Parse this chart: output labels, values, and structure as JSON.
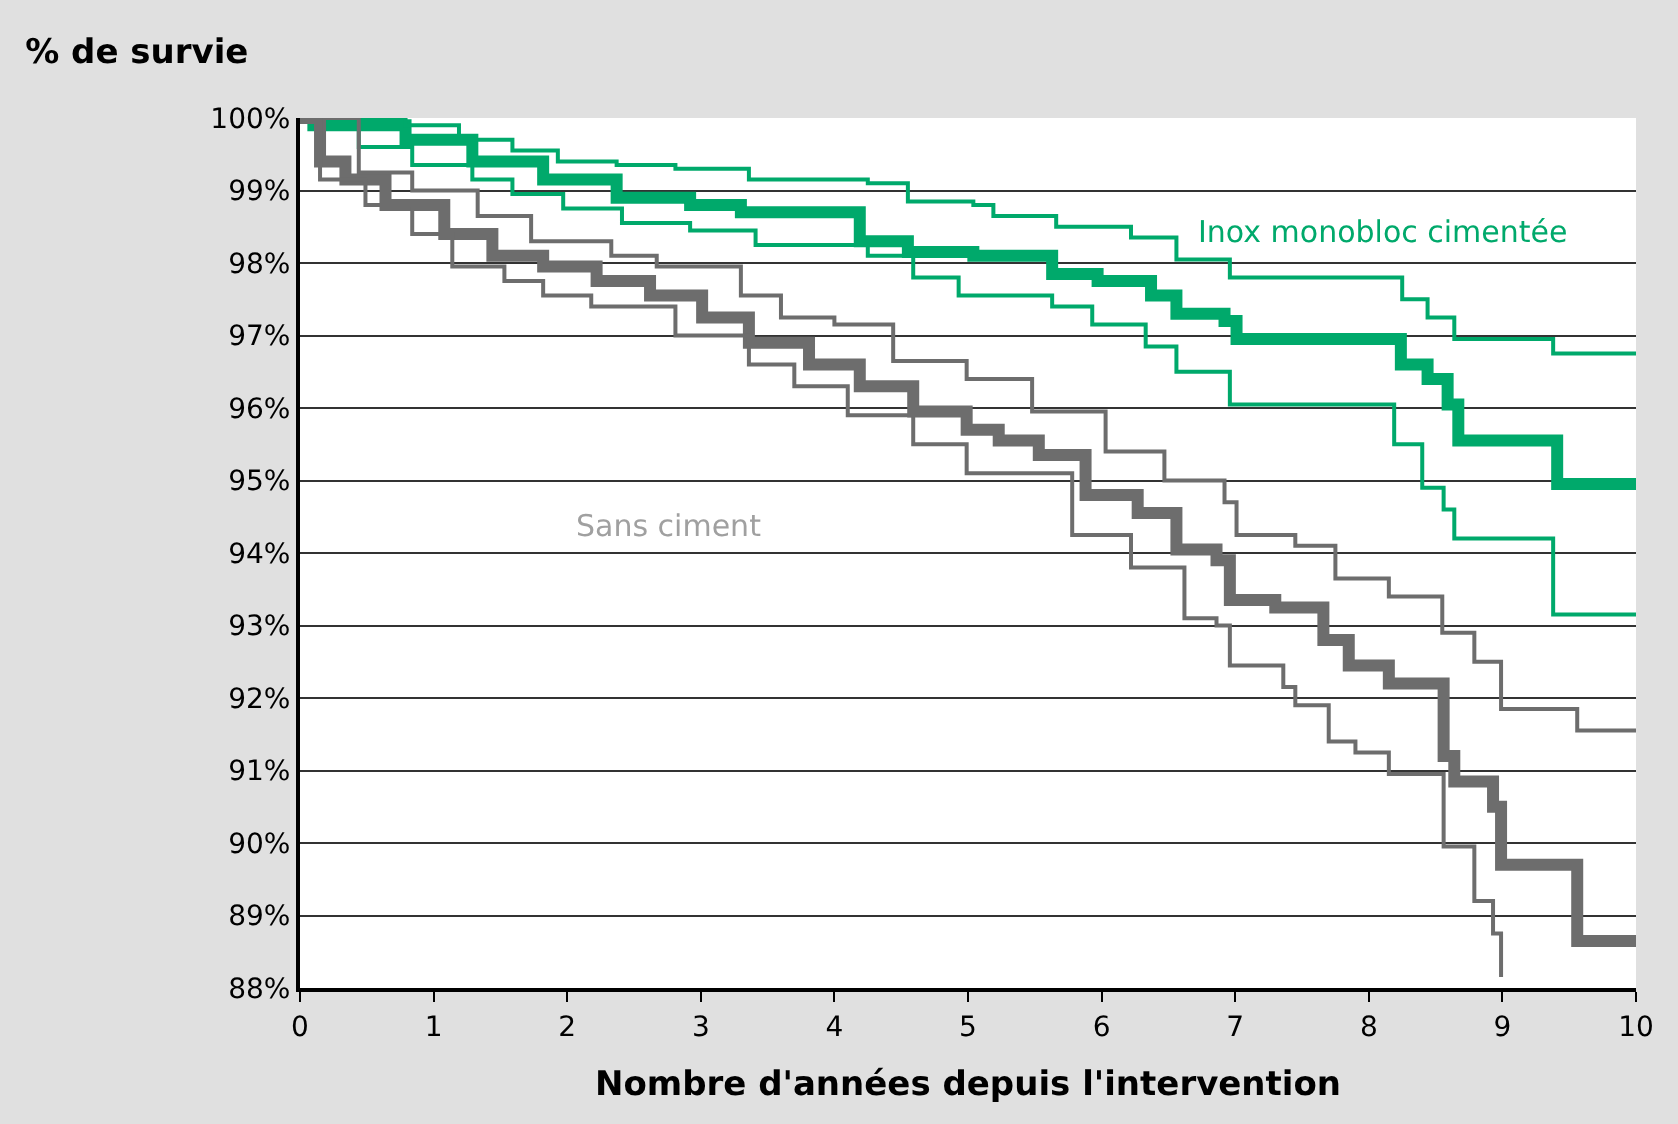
{
  "chart_data": {
    "type": "step",
    "title": "% de survie",
    "xlabel": "Nombre d'années depuis l'intervention",
    "xlim": [
      0,
      10
    ],
    "xticks": [
      0,
      1,
      2,
      3,
      4,
      5,
      6,
      7,
      8,
      9,
      10
    ],
    "ylim": [
      88,
      100
    ],
    "yticks": [
      {
        "value": 88,
        "label": "88%"
      },
      {
        "value": 89,
        "label": "89%"
      },
      {
        "value": 90,
        "label": "90%"
      },
      {
        "value": 91,
        "label": "91%"
      },
      {
        "value": 92,
        "label": "92%"
      },
      {
        "value": 93,
        "label": "93%"
      },
      {
        "value": 94,
        "label": "94%"
      },
      {
        "value": 95,
        "label": "95%"
      },
      {
        "value": 96,
        "label": "96%"
      },
      {
        "value": 97,
        "label": "97%"
      },
      {
        "value": 98,
        "label": "98%"
      },
      {
        "value": 99,
        "label": "99%"
      },
      {
        "value": 100,
        "label": "100%"
      }
    ],
    "grid": "y",
    "marker": "none",
    "line_style": "solid",
    "series": [
      {
        "color": "#00a96b",
        "x": [
          0,
          0.1,
          0.79,
          1.29,
          1.82,
          2.37,
          2.92,
          3.3,
          4.19,
          4.55,
          5.04,
          5.63,
          5.97,
          6.37,
          6.56,
          6.92,
          7.01,
          8.24,
          8.44,
          8.59,
          8.67,
          9.41,
          10
        ],
        "values": [
          100,
          99.9,
          99.7,
          99.4,
          99.15,
          98.9,
          98.8,
          98.7,
          98.3,
          98.15,
          98.1,
          97.85,
          97.75,
          97.55,
          97.3,
          97.2,
          96.95,
          96.6,
          96.4,
          96.05,
          95.55,
          94.95,
          94.95
        ]
      },
      {
        "color": "#00a96b",
        "x": [
          0,
          0.79,
          1.19,
          1.59,
          1.93,
          2.37,
          2.81,
          3.36,
          4.25,
          4.55,
          5.04,
          5.19,
          5.66,
          6.22,
          6.56,
          6.96,
          8.25,
          8.44,
          8.64,
          9.38,
          10
        ],
        "values": [
          100,
          99.9,
          99.7,
          99.55,
          99.4,
          99.35,
          99.3,
          99.15,
          99.1,
          98.85,
          98.8,
          98.65,
          98.5,
          98.35,
          98.05,
          97.8,
          97.5,
          97.25,
          96.95,
          96.75,
          96.75
        ]
      },
      {
        "color": "#00a96b",
        "x": [
          0,
          0.44,
          0.84,
          1.29,
          1.59,
          1.97,
          2.41,
          2.92,
          3.41,
          4.25,
          4.59,
          4.93,
          5.63,
          5.93,
          6.33,
          6.56,
          6.96,
          8.19,
          8.4,
          8.56,
          8.64,
          9.38,
          10
        ],
        "values": [
          100,
          99.6,
          99.35,
          99.15,
          98.95,
          98.75,
          98.55,
          98.45,
          98.25,
          98.1,
          97.8,
          97.55,
          97.4,
          97.15,
          96.85,
          96.5,
          96.05,
          95.5,
          94.9,
          94.6,
          94.2,
          93.15,
          93.15
        ]
      },
      {
        "color": "#6d6d6d",
        "x": [
          0,
          0.15,
          0.34,
          0.64,
          1.08,
          1.44,
          1.82,
          2.22,
          2.62,
          3.01,
          3.36,
          3.81,
          4.19,
          4.59,
          4.99,
          5.23,
          5.53,
          5.88,
          6.27,
          6.56,
          6.86,
          6.96,
          7.3,
          7.66,
          7.85,
          8.15,
          8.56,
          8.64,
          8.93,
          8.99,
          9.56,
          10
        ],
        "values": [
          100,
          99.4,
          99.15,
          98.8,
          98.4,
          98.1,
          97.95,
          97.75,
          97.55,
          97.25,
          96.9,
          96.6,
          96.3,
          95.95,
          95.7,
          95.55,
          95.35,
          94.8,
          94.55,
          94.05,
          93.9,
          93.35,
          93.25,
          92.8,
          92.45,
          92.2,
          91.2,
          90.85,
          90.5,
          89.7,
          88.65,
          88.65
        ]
      },
      {
        "color": "#6d6d6d",
        "x": [
          0,
          0.44,
          0.84,
          1.33,
          1.73,
          2.33,
          2.67,
          3.3,
          3.6,
          4.0,
          4.44,
          4.99,
          5.48,
          6.03,
          6.47,
          6.92,
          7.01,
          7.45,
          7.75,
          8.15,
          8.55,
          8.79,
          8.99,
          9.56,
          10
        ],
        "values": [
          100,
          99.25,
          99.0,
          98.65,
          98.3,
          98.1,
          97.95,
          97.55,
          97.25,
          97.15,
          96.65,
          96.4,
          95.95,
          95.4,
          95.0,
          94.7,
          94.25,
          94.1,
          93.65,
          93.4,
          92.9,
          92.5,
          91.85,
          91.55,
          91.55
        ]
      },
      {
        "color": "#6d6d6d",
        "x": [
          0,
          0.15,
          0.49,
          0.84,
          1.14,
          1.53,
          1.82,
          2.18,
          2.81,
          3.36,
          3.7,
          4.1,
          4.59,
          4.99,
          5.78,
          6.22,
          6.62,
          6.86,
          6.96,
          7.36,
          7.45,
          7.7,
          7.9,
          8.15,
          8.56,
          8.79,
          8.93,
          8.99
        ],
        "values": [
          100,
          99.15,
          98.8,
          98.4,
          97.95,
          97.75,
          97.55,
          97.4,
          97.0,
          96.6,
          96.3,
          95.9,
          95.5,
          95.1,
          94.25,
          93.8,
          93.1,
          93.0,
          92.45,
          92.15,
          91.9,
          91.4,
          91.25,
          90.95,
          89.95,
          89.2,
          88.75,
          88.15
        ]
      }
    ],
    "annotations": [
      "Inox monobloc cimentée",
      "Sans ciment"
    ]
  }
}
